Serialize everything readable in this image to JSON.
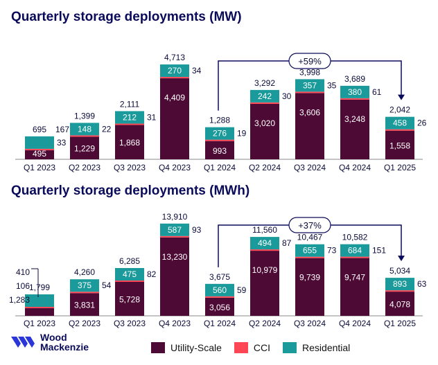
{
  "colors": {
    "utility": "#4d0a35",
    "cci": "#ff4654",
    "residential": "#1a9a9a",
    "title": "#0a0a5a",
    "growth": "#0a0a5a"
  },
  "legend": [
    "Utility-Scale",
    "CCI",
    "Residential"
  ],
  "logo": {
    "line1": "Wood",
    "line2": "Mackenzie"
  },
  "chart_data": [
    {
      "type": "bar",
      "stacked": true,
      "title": "Quarterly storage deployments (MW)",
      "categories": [
        "Q1 2023",
        "Q2 2023",
        "Q3 2023",
        "Q4 2023",
        "Q1 2024",
        "Q2 2024",
        "Q3 2024",
        "Q4 2024",
        "Q1 2025"
      ],
      "series": [
        {
          "name": "Utility-Scale",
          "values": [
            495,
            1229,
            1868,
            4409,
            993,
            3020,
            3606,
            3248,
            1558
          ]
        },
        {
          "name": "CCI",
          "values": [
            33,
            22,
            31,
            34,
            19,
            30,
            35,
            61,
            26
          ]
        },
        {
          "name": "Residential",
          "values": [
            167,
            148,
            212,
            270,
            276,
            242,
            357,
            380,
            458
          ]
        }
      ],
      "totals": [
        "695",
        "1,399",
        "2,111",
        "4,713",
        "1,288",
        "3,292",
        "3,998",
        "3,689",
        "2,042"
      ],
      "utility_labels": [
        "495",
        "1,229",
        "1,868",
        "4,409",
        "993",
        "3,020",
        "3,606",
        "3,248",
        "1,558"
      ],
      "cci_labels": [
        "33",
        "22",
        "31",
        "34",
        "19",
        "30",
        "35",
        "61",
        "26"
      ],
      "residential_labels": [
        "167",
        "148",
        "212",
        "270",
        "276",
        "242",
        "357",
        "380",
        "458"
      ],
      "annotation": {
        "text": "+59%",
        "from": "Q1 2024",
        "to": "Q1 2025"
      }
    },
    {
      "type": "bar",
      "stacked": true,
      "title": "Quarterly storage deployments (MWh)",
      "categories": [
        "Q1 2023",
        "Q2 2023",
        "Q3 2023",
        "Q4 2023",
        "Q1 2024",
        "Q2 2024",
        "Q3 2024",
        "Q4 2024",
        "Q1 2025"
      ],
      "series": [
        {
          "name": "Utility-Scale",
          "values": [
            1283,
            3831,
            5728,
            13230,
            3056,
            10979,
            9739,
            9747,
            4078
          ]
        },
        {
          "name": "CCI",
          "values": [
            106,
            54,
            82,
            93,
            59,
            87,
            73,
            151,
            63
          ]
        },
        {
          "name": "Residential",
          "values": [
            410,
            375,
            475,
            587,
            560,
            494,
            655,
            684,
            893
          ]
        }
      ],
      "totals": [
        "1,799",
        "4,260",
        "6,285",
        "13,910",
        "3,675",
        "11,560",
        "10,467",
        "10,582",
        "5,034"
      ],
      "utility_labels": [
        "1,283",
        "3,831",
        "5,728",
        "13,230",
        "3,056",
        "10,979",
        "9,739",
        "9,747",
        "4,078"
      ],
      "cci_labels": [
        "106",
        "54",
        "82",
        "93",
        "59",
        "87",
        "73",
        "151",
        "63"
      ],
      "residential_labels": [
        "410",
        "375",
        "475",
        "587",
        "560",
        "494",
        "655",
        "684",
        "893"
      ],
      "annotation": {
        "text": "+37%",
        "from": "Q1 2024",
        "to": "Q1 2025"
      }
    }
  ]
}
